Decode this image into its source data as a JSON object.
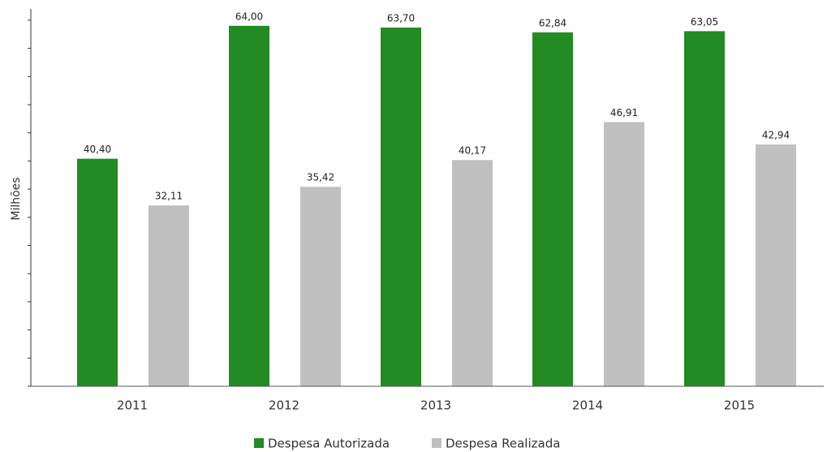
{
  "chart_data": {
    "type": "bar",
    "ylabel": "Milhões",
    "categories": [
      "2011",
      "2012",
      "2013",
      "2014",
      "2015"
    ],
    "series": [
      {
        "name": "Despesa Autorizada",
        "color": "#228b22",
        "values": [
          40.4,
          64.0,
          63.7,
          62.84,
          63.05
        ],
        "value_labels": [
          "40,40",
          "64,00",
          "63,70",
          "62,84",
          "63,05"
        ]
      },
      {
        "name": "Despesa Realizada",
        "color": "#c0c0c0",
        "values": [
          32.11,
          35.42,
          40.17,
          46.91,
          42.94
        ],
        "value_labels": [
          "32,11",
          "35,42",
          "40,17",
          "46,91",
          "42,94"
        ]
      }
    ],
    "ylim": [
      0,
      67
    ],
    "yticks": [
      0,
      5,
      10,
      15,
      20,
      25,
      30,
      35,
      40,
      45,
      50,
      55,
      60,
      65
    ],
    "legend": "bottom"
  }
}
